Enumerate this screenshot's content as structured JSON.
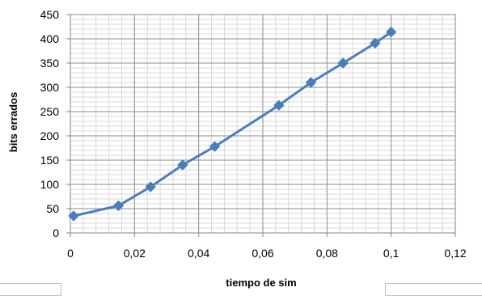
{
  "chart_data": {
    "type": "scatter",
    "title": "",
    "xlabel": "tiempo de sim",
    "ylabel": "bits errados",
    "xlim": [
      0,
      0.12
    ],
    "ylim": [
      0,
      450
    ],
    "x_ticks": [
      "0",
      "0,02",
      "0,04",
      "0,06",
      "0,08",
      "0,1",
      "0,12"
    ],
    "y_ticks": [
      "0",
      "50",
      "100",
      "150",
      "200",
      "250",
      "300",
      "350",
      "400",
      "450"
    ],
    "grid": "major and minor",
    "legend": "none",
    "series": [
      {
        "marker": "diamond",
        "line": "straight",
        "color": "#4a7ebb",
        "x": [
          0.001,
          0.015,
          0.025,
          0.035,
          0.045,
          0.065,
          0.075,
          0.085,
          0.095,
          0.1
        ],
        "y": [
          35,
          56,
          95,
          140,
          178,
          263,
          310,
          350,
          391,
          414
        ]
      }
    ]
  }
}
